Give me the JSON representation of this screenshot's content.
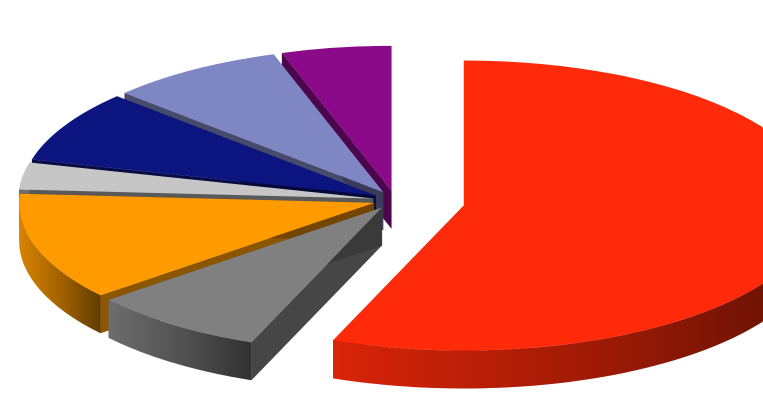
{
  "chart_data": {
    "type": "pie",
    "style": "3d-exploded",
    "legend": "none",
    "data_labels": "none",
    "slices": [
      {
        "value": 56,
        "color": "#ff2a0a"
      },
      {
        "value": 8,
        "color": "#808080"
      },
      {
        "value": 12,
        "color": "#ff9a00"
      },
      {
        "value": 3,
        "color": "#c6c6c6"
      },
      {
        "value": 8,
        "color": "#0c1480"
      },
      {
        "value": 8,
        "color": "#7f86c4"
      },
      {
        "value": 5,
        "color": "#8a0a8a"
      }
    ]
  }
}
